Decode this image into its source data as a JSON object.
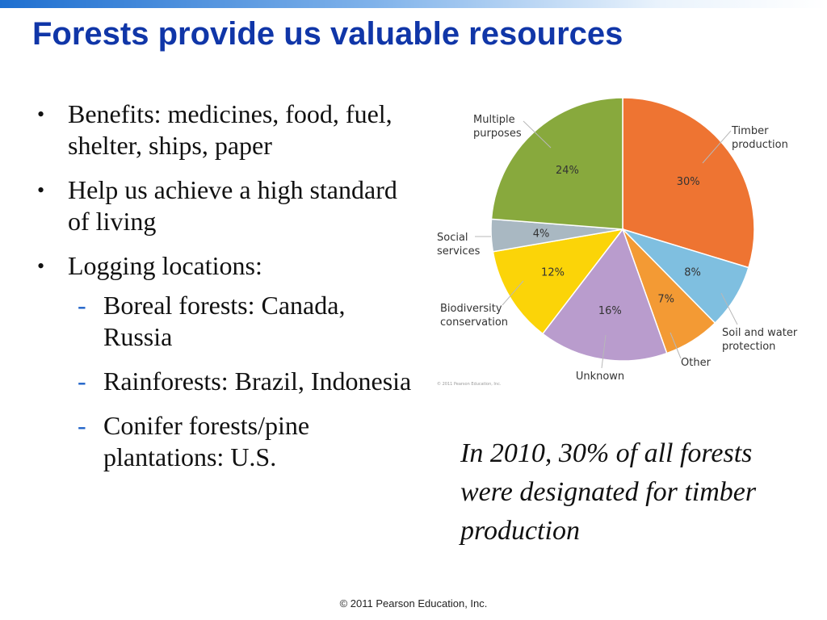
{
  "slide": {
    "title": "Forests provide us valuable resources",
    "bullets": [
      {
        "text": "Benefits: medicines, food, fuel, shelter, ships, paper"
      },
      {
        "text": "Help us achieve a high standard of living"
      },
      {
        "text": "Logging locations:"
      }
    ],
    "sub_bullets": [
      {
        "text": "Boreal forests: Canada, Russia"
      },
      {
        "text": "Rainforests: Brazil, Indonesia"
      },
      {
        "text": "Conifer forests/pine plantations: U.S."
      }
    ],
    "bullet_glyph": "•",
    "sub_bullet_glyph": "-",
    "caption": "In 2010, 30% of all forests were designated for timber production",
    "copyright": "© 2011 Pearson Education, Inc."
  },
  "chart_data": {
    "type": "pie",
    "credit": "© 2011 Pearson Education, Inc.",
    "slices": [
      {
        "label": [
          "Timber",
          "production"
        ],
        "value": 30,
        "pct_label": "30%",
        "color": "#ee7432"
      },
      {
        "label": [
          "Soil and water",
          "protection"
        ],
        "value": 8,
        "pct_label": "8%",
        "color": "#7fbfe0"
      },
      {
        "label": [
          "Other"
        ],
        "value": 7,
        "pct_label": "7%",
        "color": "#f39a34"
      },
      {
        "label": [
          "Unknown"
        ],
        "value": 16,
        "pct_label": "16%",
        "color": "#b99ccd"
      },
      {
        "label": [
          "Biodiversity",
          "conservation"
        ],
        "value": 12,
        "pct_label": "12%",
        "color": "#fbd408"
      },
      {
        "label": [
          "Social",
          "services"
        ],
        "value": 4,
        "pct_label": "4%",
        "color": "#a9b8c2"
      },
      {
        "label": [
          "Multiple",
          "purposes"
        ],
        "value": 24,
        "pct_label": "24%",
        "color": "#88a93d"
      }
    ]
  }
}
